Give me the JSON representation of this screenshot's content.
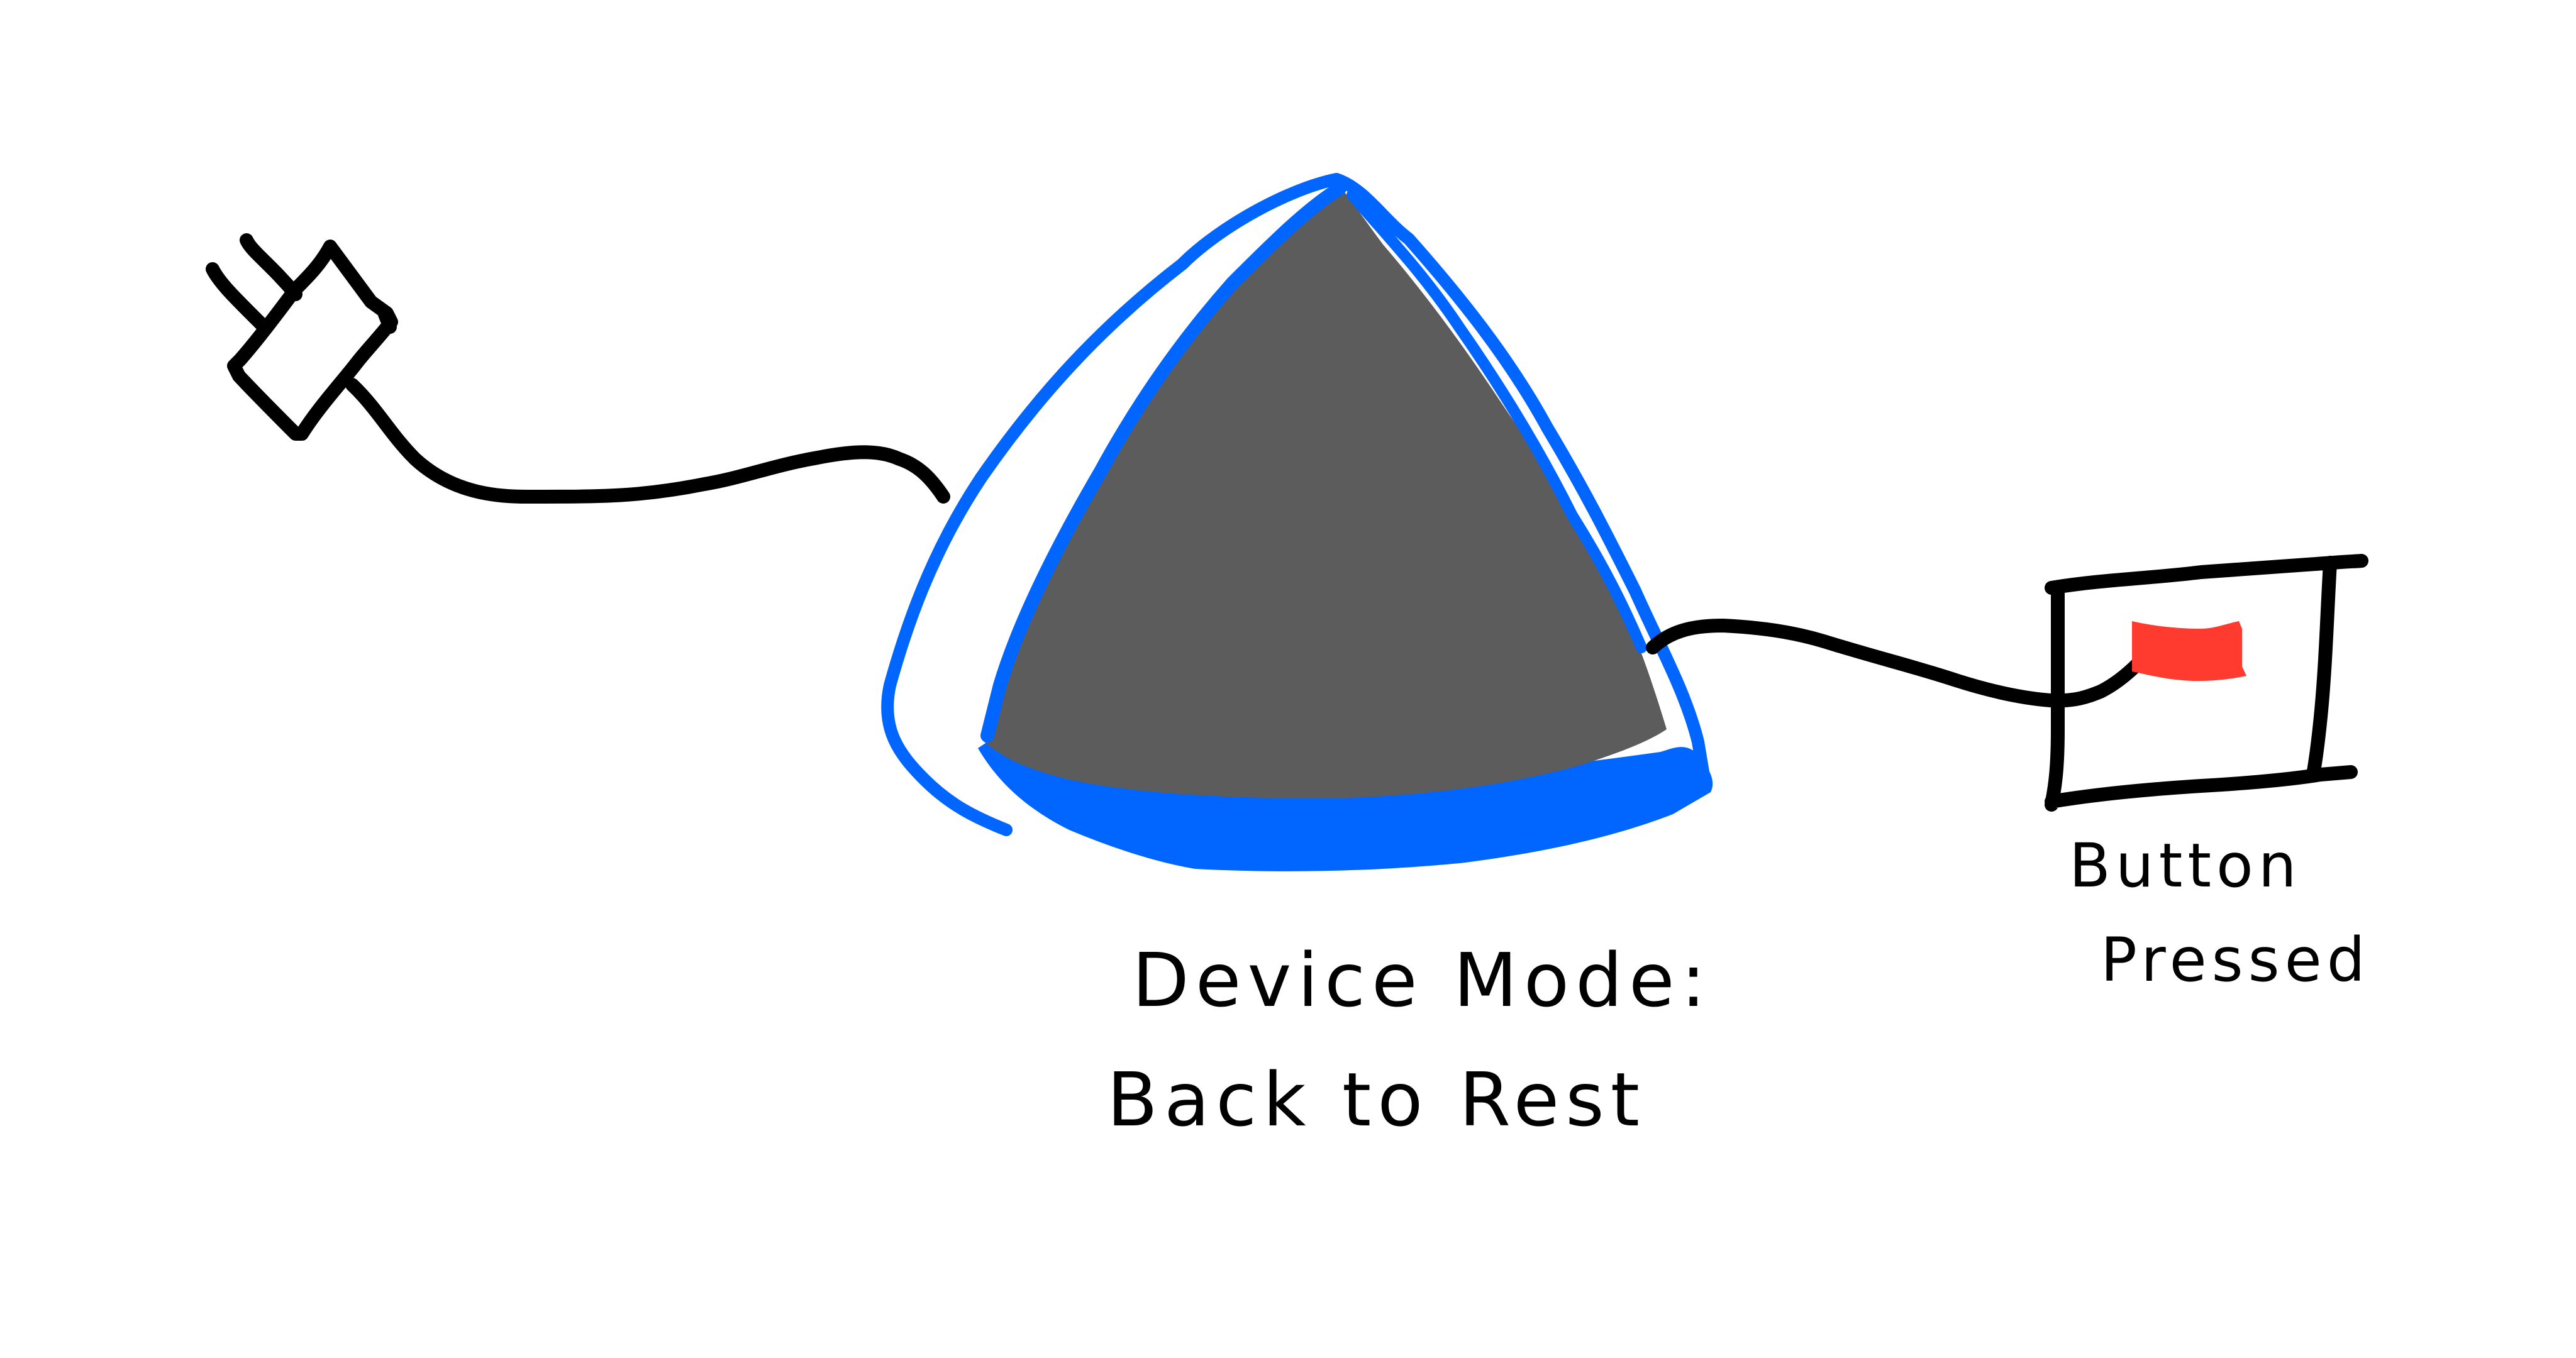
{
  "device": {
    "label_line1": "Device Mode:",
    "label_line2": "Back to Rest",
    "state": "rest",
    "body_color": "#5c5c5c",
    "ring_color": "#0066ff"
  },
  "button": {
    "label_line1": "Button",
    "label_line2": "Pressed",
    "pressed": true,
    "indicator_color": "#ff3b30"
  },
  "colors": {
    "outline": "#000000",
    "background": "#ffffff"
  }
}
